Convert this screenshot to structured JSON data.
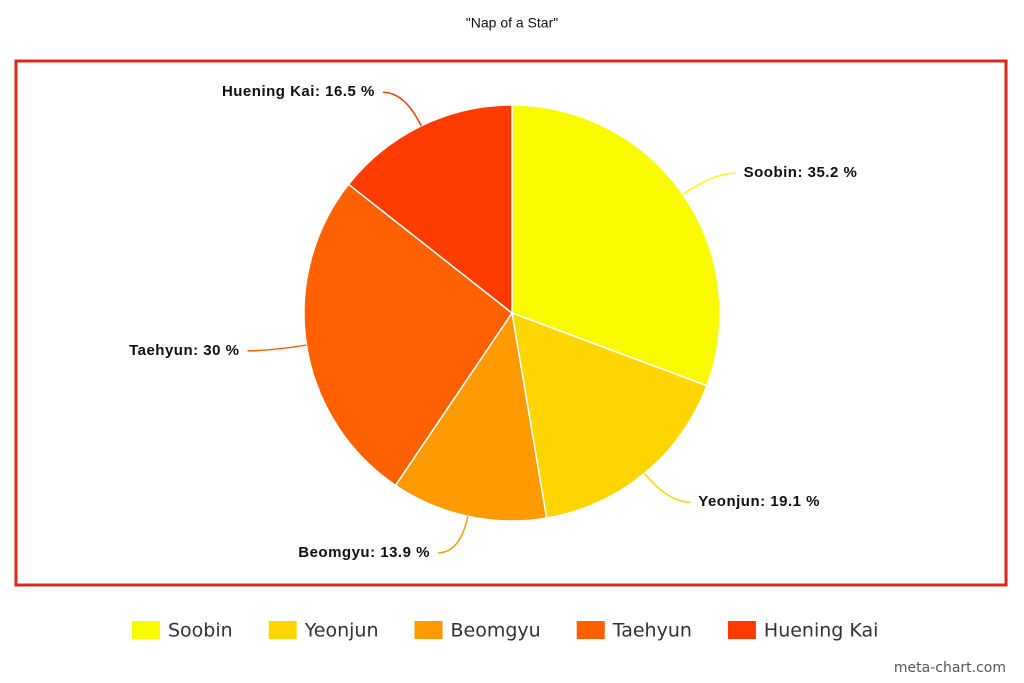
{
  "chart_data": {
    "type": "pie",
    "title": "\"Nap of a Star\"",
    "categories": [
      "Soobin",
      "Yeonjun",
      "Beomgyu",
      "Taehyun",
      "Huening Kai"
    ],
    "values": [
      35.2,
      19.1,
      13.9,
      30,
      16.5
    ],
    "value_labels": [
      "Soobin: 35.2 %",
      "Yeonjun: 19.1 %",
      "Beomgyu: 13.9 %",
      "Taehyun: 30 %",
      "Huening Kai: 16.5 %"
    ],
    "colors": [
      "#f9f900",
      "#ffd500",
      "#ff9900",
      "#ff6000",
      "#ff3b00"
    ],
    "legend": "bottom",
    "credit": "meta-chart.com"
  }
}
